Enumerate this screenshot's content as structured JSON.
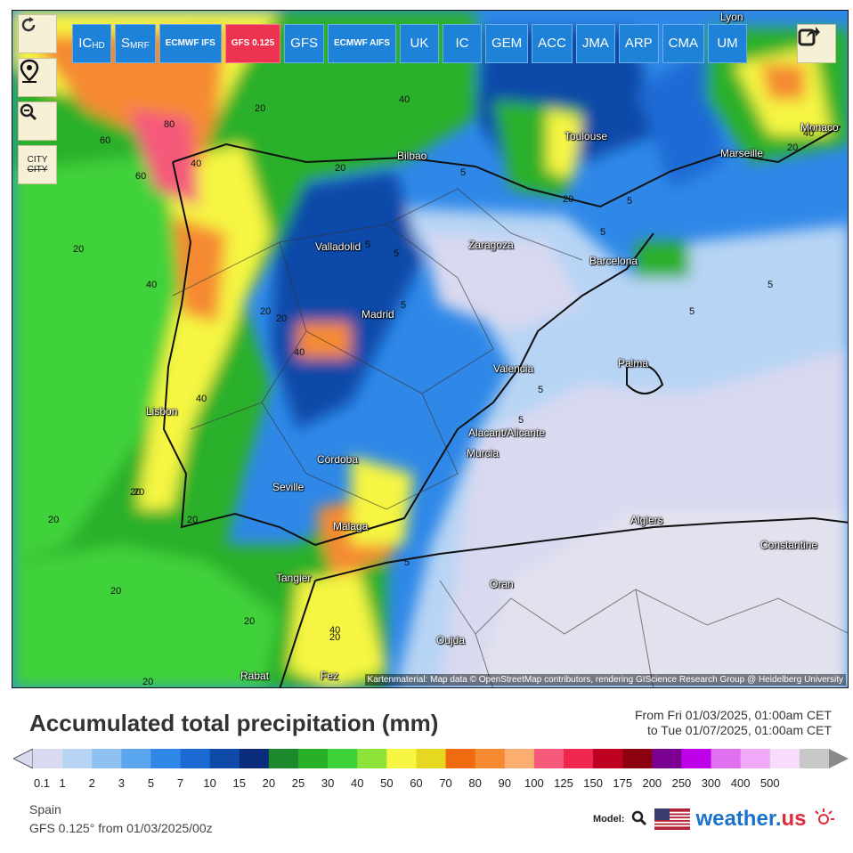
{
  "map": {
    "model_buttons": [
      {
        "label": "IC",
        "sub": "HD",
        "active": false
      },
      {
        "label": "S",
        "sub": "MRF",
        "active": false
      },
      {
        "label": "ECMWF IFS",
        "sub": "",
        "active": false,
        "small": true
      },
      {
        "label": "GFS 0.125",
        "sub": "",
        "active": true,
        "small": true
      },
      {
        "label": "GFS",
        "sub": "",
        "active": false
      },
      {
        "label": "ECMWF AIFS",
        "sub": "",
        "active": false,
        "small": true
      },
      {
        "label": "UK",
        "sub": "",
        "active": false
      },
      {
        "label": "IC",
        "sub": "",
        "active": false
      },
      {
        "label": "GEM",
        "sub": "",
        "active": false
      },
      {
        "label": "ACC",
        "sub": "",
        "active": false
      },
      {
        "label": "JMA",
        "sub": "",
        "active": false
      },
      {
        "label": "ARP",
        "sub": "",
        "active": false
      },
      {
        "label": "CMA",
        "sub": "",
        "active": false
      },
      {
        "label": "UM",
        "sub": "",
        "active": false
      }
    ],
    "side_buttons": {
      "refresh_icon": "refresh-icon",
      "location_icon": "map-pin-icon",
      "zoom_icon": "zoom-out-icon",
      "city_label": "CITY"
    },
    "share_icon": "share-icon",
    "cities": [
      {
        "name": "Lyon"
      },
      {
        "name": "Toulouse"
      },
      {
        "name": "Monaco"
      },
      {
        "name": "Marseille"
      },
      {
        "name": "Bilbao"
      },
      {
        "name": "Valladolid"
      },
      {
        "name": "Zaragoza"
      },
      {
        "name": "Barcelona"
      },
      {
        "name": "Madrid"
      },
      {
        "name": "Palma"
      },
      {
        "name": "Valencia"
      },
      {
        "name": "Lisbon"
      },
      {
        "name": "Alacant/Alicante"
      },
      {
        "name": "Murcia"
      },
      {
        "name": "Córdoba"
      },
      {
        "name": "Seville"
      },
      {
        "name": "Málaga"
      },
      {
        "name": "Algiers"
      },
      {
        "name": "Constantine"
      },
      {
        "name": "Tangier"
      },
      {
        "name": "Oran"
      },
      {
        "name": "Oujda"
      },
      {
        "name": "Rabat"
      },
      {
        "name": "Fez"
      }
    ],
    "contour_labels": [
      "40",
      "20",
      "40",
      "60",
      "80",
      "60",
      "40",
      "40",
      "20",
      "20",
      "40",
      "20",
      "5",
      "5",
      "20",
      "5",
      "5",
      "5",
      "5",
      "5",
      "20",
      "20",
      "20",
      "20",
      "5",
      "20",
      "20",
      "40",
      "20",
      "20",
      "5",
      "5",
      "40",
      "5",
      "20",
      "20"
    ],
    "attribution": "Kartenmaterial: Map data © OpenStreetMap contributors, rendering GIScience Research Group @ Heidelberg University"
  },
  "title": "Accumulated total precipitation (mm)",
  "period": {
    "from": "From Fri 01/03/2025, 01:00am CET",
    "to": "to Tue 01/07/2025, 01:00am CET"
  },
  "legend": {
    "colors": [
      "#d9d9f0",
      "#b7d4f4",
      "#8ec1f2",
      "#5aa6ee",
      "#2f88e8",
      "#1b6ad4",
      "#0f4aa8",
      "#0b2c7c",
      "#1c8a2c",
      "#29b029",
      "#3fd23a",
      "#8ee33a",
      "#f5f542",
      "#e6d820",
      "#f06a10",
      "#f58a30",
      "#fbae70",
      "#f55a7a",
      "#f02850",
      "#c00020",
      "#8c0010",
      "#7a0090",
      "#c000e8",
      "#e070f0",
      "#f0a8f8",
      "#f8dcfc",
      "#c8c8c8"
    ],
    "ticks": [
      "0.1",
      "1",
      "2",
      "3",
      "5",
      "7",
      "10",
      "15",
      "20",
      "25",
      "30",
      "40",
      "50",
      "60",
      "70",
      "80",
      "90",
      "100",
      "125",
      "150",
      "175",
      "200",
      "250",
      "300",
      "400",
      "500"
    ]
  },
  "footer": {
    "region": "Spain",
    "model": "GFS 0.125° from 01/03/2025/00z",
    "model_label": "Model:",
    "brand_main": "weather.",
    "brand_accent": "us"
  }
}
